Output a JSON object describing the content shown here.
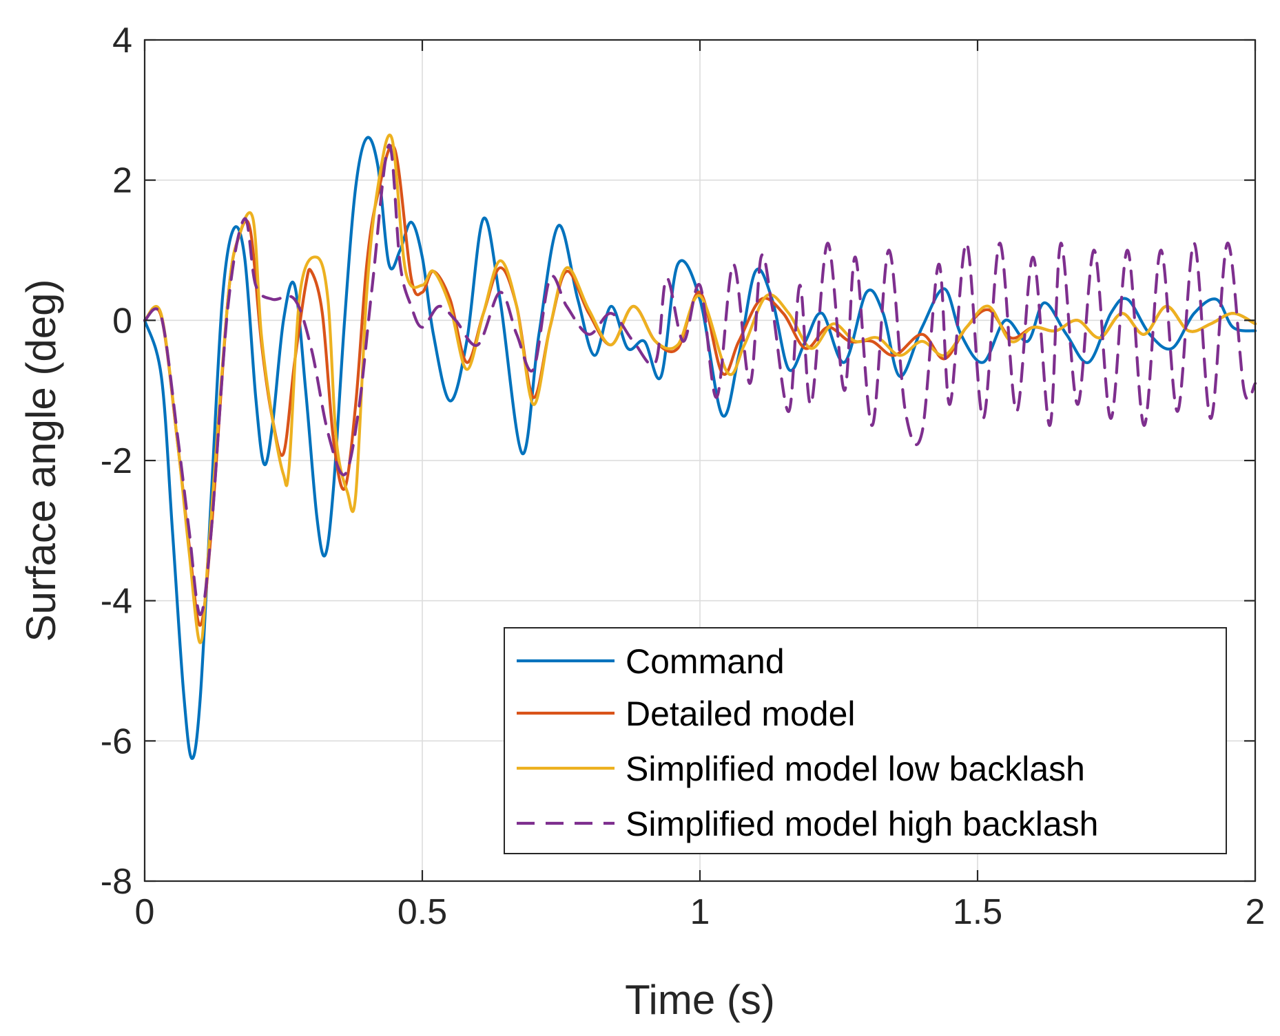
{
  "chart_data": {
    "type": "line",
    "xlabel": "Time (s)",
    "ylabel": "Surface angle (deg)",
    "xlim": [
      0,
      2
    ],
    "ylim": [
      -8,
      4
    ],
    "xticks": [
      0,
      0.5,
      1,
      1.5,
      2
    ],
    "xtick_labels": [
      "0",
      "0.5",
      "1",
      "1.5",
      "2"
    ],
    "yticks": [
      -8,
      -6,
      -4,
      -2,
      0,
      2,
      4
    ],
    "ytick_labels": [
      "-8",
      "-6",
      "-4",
      "-2",
      "0",
      "2",
      "4"
    ],
    "grid": true,
    "legend_position": "bottom-right",
    "series": [
      {
        "name": "Command",
        "color": "#0072BD",
        "dash": "solid",
        "x": [
          0,
          0.03,
          0.05,
          0.07,
          0.085,
          0.1,
          0.12,
          0.14,
          0.16,
          0.18,
          0.2,
          0.215,
          0.23,
          0.25,
          0.27,
          0.29,
          0.31,
          0.325,
          0.34,
          0.36,
          0.38,
          0.4,
          0.42,
          0.44,
          0.46,
          0.48,
          0.5,
          0.52,
          0.55,
          0.58,
          0.61,
          0.64,
          0.68,
          0.71,
          0.745,
          0.78,
          0.81,
          0.84,
          0.87,
          0.9,
          0.93,
          0.96,
          1.0,
          1.04,
          1.07,
          1.1,
          1.13,
          1.16,
          1.19,
          1.22,
          1.26,
          1.3,
          1.33,
          1.36,
          1.4,
          1.44,
          1.47,
          1.51,
          1.55,
          1.59,
          1.62,
          1.66,
          1.7,
          1.74,
          1.77,
          1.81,
          1.85,
          1.89,
          1.93,
          1.96,
          2.0
        ],
        "y": [
          0,
          -0.8,
          -3.0,
          -5.3,
          -6.25,
          -5.4,
          -2.5,
          0.3,
          1.3,
          0.9,
          -1.1,
          -2.05,
          -1.5,
          0.0,
          0.5,
          -1.0,
          -2.8,
          -3.35,
          -2.4,
          0.0,
          1.9,
          2.6,
          2.2,
          0.8,
          1.0,
          1.4,
          0.9,
          -0.2,
          -1.15,
          -0.3,
          1.45,
          0.3,
          -1.9,
          -0.2,
          1.35,
          0.3,
          -0.5,
          0.2,
          -0.4,
          -0.3,
          -0.8,
          0.8,
          0.3,
          -1.35,
          -0.5,
          0.7,
          0.3,
          -0.7,
          -0.3,
          0.1,
          -0.6,
          0.4,
          0.1,
          -0.8,
          -0.1,
          0.45,
          -0.2,
          -0.6,
          0.0,
          -0.3,
          0.25,
          -0.2,
          -0.6,
          0.1,
          0.3,
          -0.2,
          -0.4,
          0.1,
          0.3,
          -0.1,
          -0.15
        ]
      },
      {
        "name": "Detailed model",
        "color": "#D95319",
        "dash": "solid",
        "x": [
          0,
          0.03,
          0.06,
          0.08,
          0.1,
          0.12,
          0.15,
          0.17,
          0.19,
          0.21,
          0.23,
          0.25,
          0.27,
          0.29,
          0.3,
          0.32,
          0.34,
          0.36,
          0.38,
          0.4,
          0.42,
          0.45,
          0.48,
          0.5,
          0.52,
          0.55,
          0.58,
          0.61,
          0.64,
          0.67,
          0.7,
          0.73,
          0.76,
          0.8,
          0.84,
          0.88,
          0.92,
          0.96,
          1.0,
          1.04,
          1.07,
          1.11,
          1.15,
          1.19,
          1.23,
          1.27,
          1.31,
          1.35,
          1.4,
          1.44,
          1.48,
          1.52,
          1.56,
          1.6,
          1.64,
          1.68,
          1.72,
          1.76,
          1.8,
          1.84,
          1.88,
          1.92,
          1.96,
          2.0
        ],
        "y": [
          0,
          0.05,
          -1.8,
          -3.2,
          -4.35,
          -3.0,
          0.3,
          1.2,
          1.3,
          -0.3,
          -1.4,
          -1.9,
          -0.6,
          0.5,
          0.7,
          0.1,
          -1.7,
          -2.4,
          -1.2,
          0.8,
          1.8,
          2.45,
          0.6,
          0.4,
          0.7,
          0.3,
          -0.6,
          0.1,
          0.75,
          0.2,
          -1.1,
          -0.1,
          0.7,
          0.1,
          -0.35,
          0.2,
          -0.3,
          -0.4,
          0.4,
          -0.75,
          -0.3,
          0.3,
          0.1,
          -0.4,
          -0.1,
          -0.3,
          -0.3,
          -0.5,
          -0.2,
          -0.55,
          -0.1,
          0.15,
          -0.25,
          -0.1,
          -0.15,
          0.0,
          -0.25,
          0.1,
          -0.2,
          0.2,
          -0.15,
          -0.05,
          0.1,
          -0.05
        ]
      },
      {
        "name": "Simplified model low backlash",
        "color": "#EDB120",
        "dash": "solid",
        "x": [
          0,
          0.03,
          0.06,
          0.08,
          0.1,
          0.115,
          0.15,
          0.17,
          0.195,
          0.21,
          0.23,
          0.25,
          0.26,
          0.28,
          0.31,
          0.33,
          0.345,
          0.365,
          0.38,
          0.4,
          0.42,
          0.445,
          0.47,
          0.5,
          0.52,
          0.55,
          0.58,
          0.61,
          0.64,
          0.67,
          0.7,
          0.73,
          0.76,
          0.8,
          0.84,
          0.88,
          0.92,
          0.96,
          1.0,
          1.05,
          1.08,
          1.12,
          1.16,
          1.2,
          1.24,
          1.28,
          1.32,
          1.36,
          1.4,
          1.44,
          1.48,
          1.52,
          1.56,
          1.6,
          1.64,
          1.68,
          1.72,
          1.76,
          1.8,
          1.84,
          1.88,
          1.92,
          1.96,
          2.0
        ],
        "y": [
          0,
          0.08,
          -1.8,
          -3.3,
          -4.6,
          -3.3,
          0.3,
          1.2,
          1.45,
          -0.2,
          -1.4,
          -2.2,
          -2.1,
          0.4,
          0.9,
          0.3,
          -1.7,
          -2.45,
          -2.5,
          0.4,
          1.9,
          2.6,
          0.7,
          0.5,
          0.7,
          0.2,
          -0.7,
          0.1,
          0.85,
          0.2,
          -1.2,
          -0.1,
          0.75,
          0.15,
          -0.35,
          0.2,
          -0.3,
          -0.35,
          0.35,
          -0.75,
          -0.35,
          0.35,
          0.1,
          -0.4,
          -0.05,
          -0.3,
          -0.25,
          -0.5,
          -0.3,
          -0.5,
          -0.1,
          0.2,
          -0.3,
          -0.1,
          -0.15,
          0.0,
          -0.25,
          0.1,
          -0.2,
          0.2,
          -0.15,
          -0.05,
          0.1,
          -0.05
        ]
      },
      {
        "name": "Simplified model high backlash",
        "color": "#7E2F8E",
        "dash": "dashed",
        "x": [
          0,
          0.03,
          0.06,
          0.08,
          0.1,
          0.12,
          0.15,
          0.18,
          0.2,
          0.23,
          0.27,
          0.3,
          0.33,
          0.36,
          0.385,
          0.41,
          0.44,
          0.46,
          0.48,
          0.5,
          0.53,
          0.56,
          0.6,
          0.64,
          0.67,
          0.7,
          0.73,
          0.76,
          0.8,
          0.84,
          0.88,
          0.92,
          0.94,
          0.97,
          1.0,
          1.03,
          1.06,
          1.09,
          1.11,
          1.13,
          1.16,
          1.18,
          1.2,
          1.23,
          1.26,
          1.28,
          1.31,
          1.34,
          1.37,
          1.4,
          1.43,
          1.45,
          1.48,
          1.51,
          1.54,
          1.57,
          1.6,
          1.63,
          1.65,
          1.68,
          1.71,
          1.74,
          1.77,
          1.8,
          1.83,
          1.86,
          1.89,
          1.92,
          1.95,
          1.98,
          2.0
        ],
        "y": [
          0,
          0.05,
          -1.7,
          -3.0,
          -4.2,
          -3.0,
          0.2,
          1.45,
          0.5,
          0.3,
          0.3,
          -0.4,
          -1.6,
          -2.2,
          -1.3,
          0.5,
          2.5,
          0.8,
          0.2,
          -0.1,
          0.2,
          0.0,
          -0.35,
          0.4,
          -0.2,
          -0.7,
          0.6,
          0.2,
          -0.2,
          0.1,
          -0.3,
          -0.6,
          0.6,
          -0.3,
          0.5,
          -1.1,
          0.8,
          -0.9,
          0.9,
          0.2,
          -1.3,
          0.5,
          -1.2,
          1.1,
          -1.0,
          0.9,
          -1.5,
          1.0,
          -1.3,
          -1.6,
          0.8,
          -1.2,
          1.1,
          -1.4,
          1.1,
          -1.3,
          0.9,
          -1.5,
          1.1,
          -1.2,
          1.0,
          -1.4,
          1.0,
          -1.5,
          1.0,
          -1.3,
          1.1,
          -1.4,
          1.1,
          -1.0,
          -0.9
        ]
      }
    ]
  }
}
